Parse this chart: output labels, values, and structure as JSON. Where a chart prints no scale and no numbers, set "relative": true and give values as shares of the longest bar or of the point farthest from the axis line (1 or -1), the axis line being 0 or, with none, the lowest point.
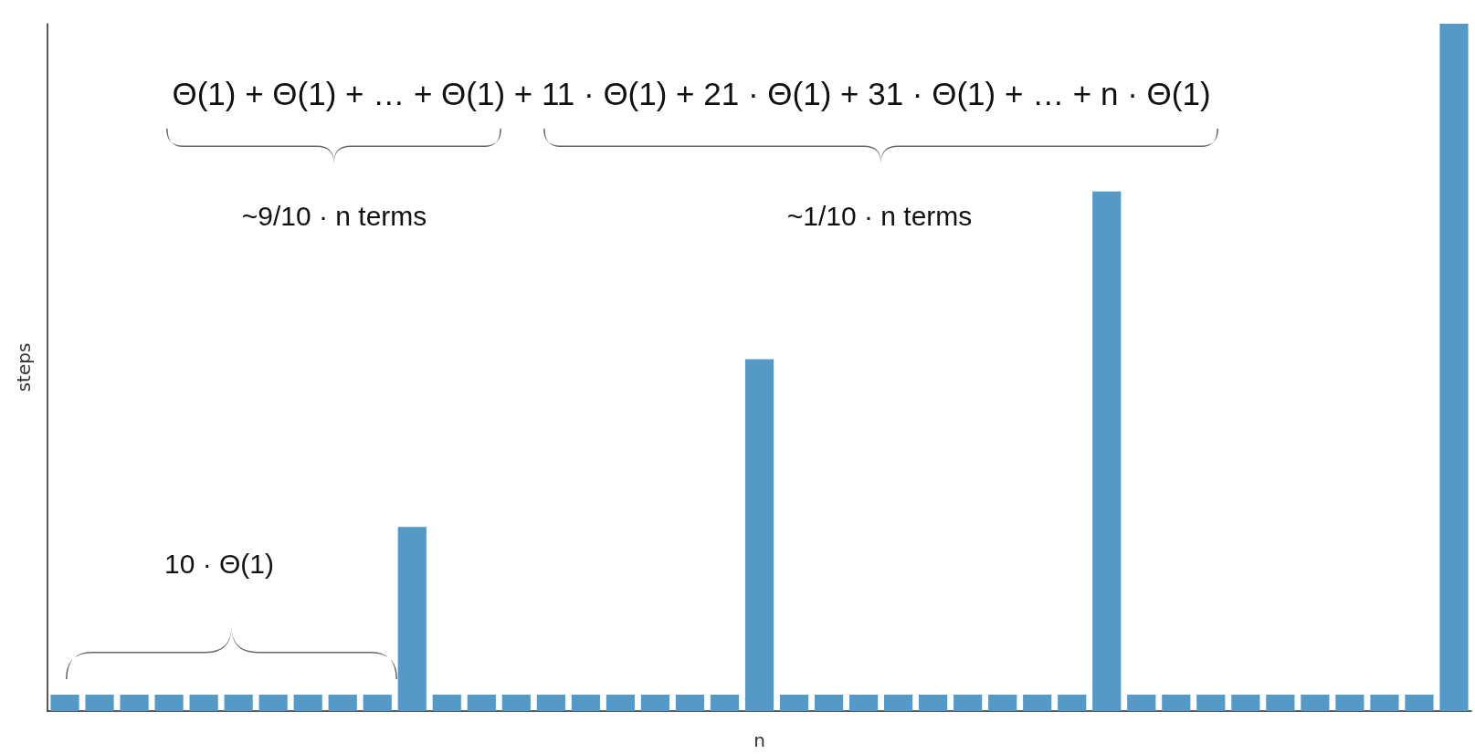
{
  "chart_data": {
    "type": "bar",
    "relative": true,
    "xlabel": "n",
    "ylabel": "steps",
    "color": "#5599c7",
    "categories": [
      null,
      null,
      null,
      null,
      null,
      null,
      null,
      null,
      null,
      null,
      null,
      null,
      null,
      null,
      null,
      null,
      null,
      null,
      null,
      null,
      null,
      null,
      null,
      null,
      null,
      null,
      null,
      null,
      null,
      null,
      null,
      null,
      null,
      null,
      null,
      null,
      null,
      null,
      null,
      null,
      null
    ],
    "values": [
      0.024,
      0.024,
      0.024,
      0.024,
      0.024,
      0.024,
      0.024,
      0.024,
      0.024,
      0.024,
      0.268,
      0.024,
      0.024,
      0.024,
      0.024,
      0.024,
      0.024,
      0.024,
      0.024,
      0.024,
      0.512,
      0.024,
      0.024,
      0.024,
      0.024,
      0.024,
      0.024,
      0.024,
      0.024,
      0.024,
      0.756,
      0.024,
      0.024,
      0.024,
      0.024,
      0.024,
      0.024,
      0.024,
      0.024,
      0.024,
      1
    ],
    "annotations": [
      "Θ(1) + Θ(1) + … + Θ(1) + 11 · Θ(1) + 21 · Θ(1) + 31 · Θ(1) + … + n · Θ(1)",
      "~9/10 · n terms",
      "~1/10 · n terms",
      "10 · Θ(1)"
    ],
    "grid": false
  }
}
